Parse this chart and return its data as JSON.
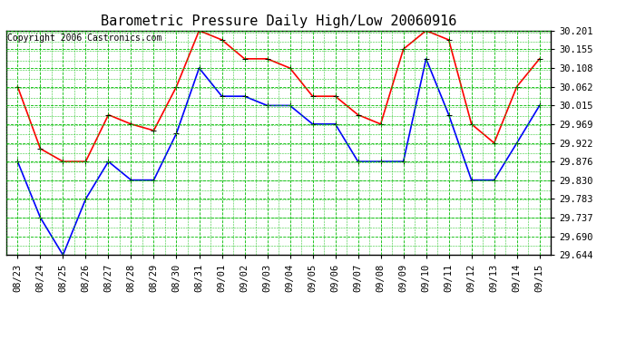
{
  "title": "Barometric Pressure Daily High/Low 20060916",
  "copyright": "Copyright 2006 Castronics.com",
  "x_labels": [
    "08/23",
    "08/24",
    "08/25",
    "08/26",
    "08/27",
    "08/28",
    "08/29",
    "08/30",
    "08/31",
    "09/01",
    "09/02",
    "09/03",
    "09/04",
    "09/05",
    "09/06",
    "09/07",
    "09/08",
    "09/09",
    "09/10",
    "09/11",
    "09/12",
    "09/13",
    "09/14",
    "09/15"
  ],
  "high_values": [
    30.062,
    29.908,
    29.876,
    29.876,
    29.992,
    29.969,
    29.953,
    30.062,
    30.201,
    30.178,
    30.131,
    30.131,
    30.108,
    30.038,
    30.038,
    29.992,
    29.969,
    30.155,
    30.201,
    30.178,
    29.969,
    29.922,
    30.062,
    30.131
  ],
  "low_values": [
    29.876,
    29.737,
    29.644,
    29.783,
    29.876,
    29.83,
    29.83,
    29.946,
    30.108,
    30.038,
    30.038,
    30.015,
    30.015,
    29.969,
    29.969,
    29.876,
    29.876,
    29.876,
    30.131,
    29.992,
    29.83,
    29.83,
    29.922,
    30.015
  ],
  "high_color": "#ff0000",
  "low_color": "#0000ff",
  "bg_color": "#ffffff",
  "plot_bg_color": "#ffffff",
  "grid_color": "#00bb00",
  "ylim_min": 29.644,
  "ylim_max": 30.201,
  "yticks": [
    29.644,
    29.69,
    29.737,
    29.783,
    29.83,
    29.876,
    29.922,
    29.969,
    30.015,
    30.062,
    30.108,
    30.155,
    30.201
  ],
  "title_fontsize": 11,
  "copyright_fontsize": 7,
  "tick_fontsize": 7.5,
  "marker": "+",
  "markersize": 5,
  "linewidth": 1.2
}
